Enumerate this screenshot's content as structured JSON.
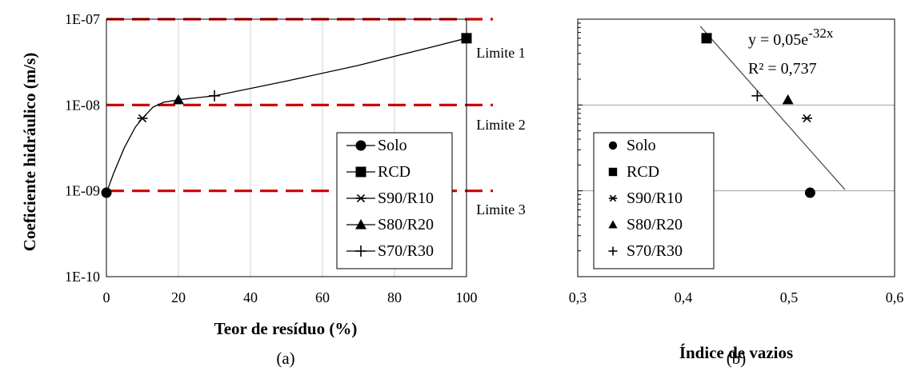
{
  "chart_data": [
    {
      "panel_label": "(a)",
      "type": "line",
      "xlabel": "Teor de resíduo (%)",
      "ylabel": "Coeficiente hidráulico (m/s)",
      "xlim": [
        0,
        100
      ],
      "ylim": [
        1e-10,
        1e-07
      ],
      "yscale": "log",
      "x_ticks": [
        "0",
        "20",
        "40",
        "60",
        "80",
        "100"
      ],
      "y_ticks": [
        "1E-10",
        "1E-09",
        "1E-08",
        "1E-07"
      ],
      "grid": "vertical",
      "legend_position": "bottom-right",
      "series": [
        {
          "name": "Solo",
          "marker": "circle",
          "points": [
            [
              0,
              9.5e-10
            ]
          ]
        },
        {
          "name": "RCD",
          "marker": "square",
          "points": [
            [
              100,
              6e-08
            ]
          ]
        },
        {
          "name": "S90/R10",
          "marker": "asterisk",
          "points": [
            [
              10,
              7e-09
            ]
          ]
        },
        {
          "name": "S80/R20",
          "marker": "triangle",
          "points": [
            [
              20,
              1.15e-08
            ]
          ]
        },
        {
          "name": "S70/R30",
          "marker": "plus",
          "points": [
            [
              30,
              1.28e-08
            ]
          ]
        }
      ],
      "curve": [
        [
          0,
          9.5e-10
        ],
        [
          2,
          1.6e-09
        ],
        [
          5,
          3.2e-09
        ],
        [
          8,
          5.5e-09
        ],
        [
          10,
          7e-09
        ],
        [
          13,
          9.5e-09
        ],
        [
          16,
          1.08e-08
        ],
        [
          20,
          1.15e-08
        ],
        [
          30,
          1.28e-08
        ],
        [
          50,
          1.9e-08
        ],
        [
          70,
          2.9e-08
        ],
        [
          90,
          4.7e-08
        ],
        [
          100,
          6e-08
        ]
      ],
      "limits": [
        {
          "label": "Limite 1",
          "value": 1e-07
        },
        {
          "label": "Limite 2",
          "value": 1e-08
        },
        {
          "label": "Limite 3",
          "value": 1e-09
        }
      ],
      "colors": {
        "limit_line": "#cc0000",
        "series": "#000000",
        "grid": "#d0d0d0"
      }
    },
    {
      "panel_label": "(b)",
      "type": "scatter",
      "xlabel": "Índice de vazios",
      "ylabel": "",
      "xlim": [
        0.3,
        0.6
      ],
      "ylim": [
        1e-10,
        1e-07
      ],
      "yscale": "log",
      "x_ticks": [
        "0,3",
        "0,4",
        "0,5",
        "0,6"
      ],
      "grid": "horizontal",
      "legend_position": "bottom-left",
      "series": [
        {
          "name": "Solo",
          "marker": "circle",
          "points": [
            [
              0.52,
              9.5e-10
            ]
          ]
        },
        {
          "name": "RCD",
          "marker": "square",
          "points": [
            [
              0.422,
              6e-08
            ]
          ]
        },
        {
          "name": "S90/R10",
          "marker": "asterisk",
          "points": [
            [
              0.517,
              7e-09
            ]
          ]
        },
        {
          "name": "S80/R20",
          "marker": "triangle",
          "points": [
            [
              0.499,
              1.15e-08
            ]
          ]
        },
        {
          "name": "S70/R30",
          "marker": "plus",
          "points": [
            [
              0.47,
              1.28e-08
            ]
          ]
        }
      ],
      "trendline": {
        "equation_base": "y = 0,05e",
        "equation_exp": "-32x",
        "r2_label": "R² = 0,737",
        "x_range": [
          0.416,
          0.553
        ]
      },
      "colors": {
        "series": "#000000",
        "grid": "#a0a0a0",
        "trend": "#505050"
      }
    }
  ]
}
